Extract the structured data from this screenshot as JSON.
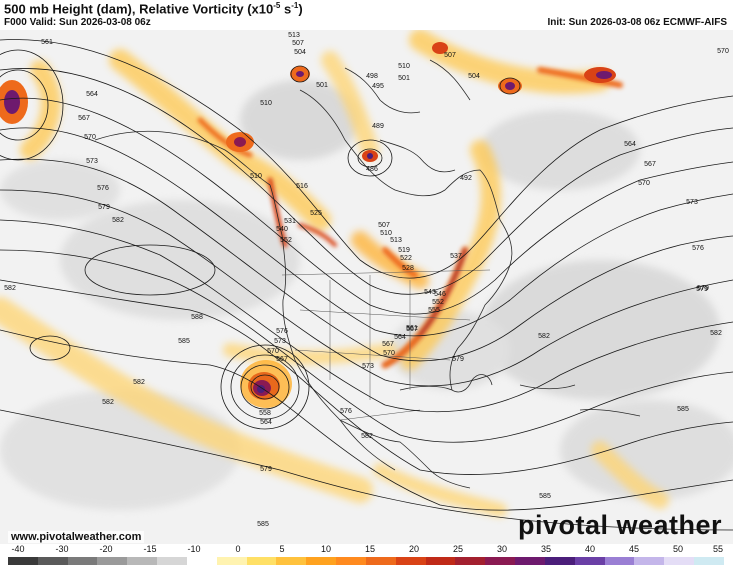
{
  "header": {
    "title_prefix": "500 mb Height (dam), Relative Vorticity (x10",
    "title_exp": "-5",
    "title_suffix": " s",
    "title_exp2": "-1",
    "title_end": ")",
    "valid": "F000 Valid: Sun 2026-03-08 06z",
    "init": "Init: Sun 2026-03-08 06z ECMWF-AIFS"
  },
  "map": {
    "contour_labels": [
      {
        "text": "561"
      },
      {
        "text": "564"
      },
      {
        "text": "567"
      },
      {
        "text": "570"
      },
      {
        "text": "573"
      },
      {
        "text": "576"
      },
      {
        "text": "579"
      },
      {
        "text": "582"
      },
      {
        "text": "588"
      },
      {
        "text": "585"
      },
      {
        "text": "582"
      },
      {
        "text": "582"
      },
      {
        "text": "513"
      },
      {
        "text": "507"
      },
      {
        "text": "504"
      },
      {
        "text": "498"
      },
      {
        "text": "495"
      },
      {
        "text": "501"
      },
      {
        "text": "510"
      },
      {
        "text": "510"
      },
      {
        "text": "507"
      },
      {
        "text": "504"
      },
      {
        "text": "501"
      },
      {
        "text": "489"
      },
      {
        "text": "486"
      },
      {
        "text": "492"
      },
      {
        "text": "570"
      },
      {
        "text": "564"
      },
      {
        "text": "567"
      },
      {
        "text": "570"
      },
      {
        "text": "573"
      },
      {
        "text": "576"
      },
      {
        "text": "579"
      },
      {
        "text": "582"
      },
      {
        "text": "585"
      },
      {
        "text": "585"
      },
      {
        "text": "582"
      },
      {
        "text": "579"
      },
      {
        "text": "576"
      },
      {
        "text": "573"
      },
      {
        "text": "570"
      },
      {
        "text": "567"
      },
      {
        "text": "564"
      },
      {
        "text": "558"
      },
      {
        "text": "585"
      },
      {
        "text": "579"
      },
      {
        "text": "582"
      },
      {
        "text": "576"
      },
      {
        "text": "573"
      },
      {
        "text": "570"
      },
      {
        "text": "567"
      },
      {
        "text": "510"
      },
      {
        "text": "516"
      },
      {
        "text": "525"
      },
      {
        "text": "531"
      },
      {
        "text": "540"
      },
      {
        "text": "552"
      },
      {
        "text": "507"
      },
      {
        "text": "510"
      },
      {
        "text": "513"
      },
      {
        "text": "519"
      },
      {
        "text": "522"
      },
      {
        "text": "528"
      },
      {
        "text": "537"
      },
      {
        "text": "543"
      },
      {
        "text": "546"
      },
      {
        "text": "552"
      },
      {
        "text": "555"
      },
      {
        "text": "561"
      },
      {
        "text": "564"
      },
      {
        "text": "567"
      },
      {
        "text": "579"
      },
      {
        "text": "582"
      }
    ]
  },
  "branding": {
    "url": "www.pivotalweather.com",
    "logo": "pivotal weather"
  },
  "colorbar": {
    "ticks": [
      "-40",
      "-30",
      "-20",
      "-15",
      "-10",
      "0",
      "5",
      "10",
      "15",
      "20",
      "25",
      "30",
      "35",
      "40",
      "45",
      "50",
      "55"
    ],
    "colors": [
      "#3a3a3a",
      "#5a5a5a",
      "#7a7a7a",
      "#9a9a9a",
      "#b8b8b8",
      "#d6d6d6",
      "#ffffff",
      "#fff3b0",
      "#ffe066",
      "#ffc23d",
      "#ffa21f",
      "#ff8a1f",
      "#ee6a1c",
      "#d94316",
      "#c02a18",
      "#a3202f",
      "#8a1a52",
      "#6e1a6e",
      "#4b1e7a",
      "#6a3fa6",
      "#9a7fd4",
      "#c4b6ea",
      "#e4ddf6",
      "#cfeaf2"
    ]
  }
}
